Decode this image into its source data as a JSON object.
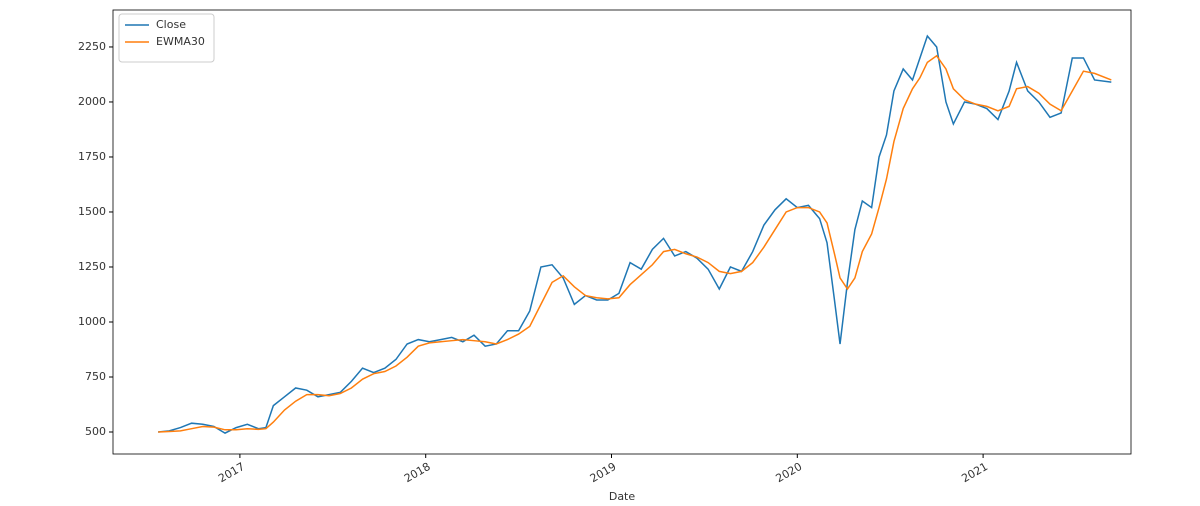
{
  "chart_data": {
    "type": "line",
    "xlabel": "Date",
    "x": [
      2016.56,
      2016.62,
      2016.68,
      2016.74,
      2016.8,
      2016.86,
      2016.92,
      2016.98,
      2017.04,
      2017.1,
      2017.14,
      2017.18,
      2017.24,
      2017.3,
      2017.36,
      2017.42,
      2017.48,
      2017.54,
      2017.6,
      2017.66,
      2017.72,
      2017.78,
      2017.84,
      2017.9,
      2017.96,
      2018.02,
      2018.08,
      2018.14,
      2018.2,
      2018.26,
      2018.32,
      2018.38,
      2018.44,
      2018.5,
      2018.56,
      2018.62,
      2018.68,
      2018.74,
      2018.8,
      2018.86,
      2018.92,
      2018.98,
      2019.04,
      2019.1,
      2019.16,
      2019.22,
      2019.28,
      2019.34,
      2019.4,
      2019.46,
      2019.52,
      2019.58,
      2019.64,
      2019.7,
      2019.76,
      2019.82,
      2019.88,
      2019.94,
      2020.0,
      2020.06,
      2020.12,
      2020.16,
      2020.2,
      2020.23,
      2020.27,
      2020.31,
      2020.35,
      2020.4,
      2020.44,
      2020.48,
      2020.52,
      2020.57,
      2020.62,
      2020.66,
      2020.7,
      2020.75,
      2020.8,
      2020.84,
      2020.9,
      2020.96,
      2021.02,
      2021.08,
      2021.14,
      2021.18,
      2021.24,
      2021.3,
      2021.36,
      2021.42,
      2021.48,
      2021.54,
      2021.6,
      2021.69
    ],
    "series": [
      {
        "name": "Close",
        "color": "#1f77b4",
        "values": [
          500,
          505,
          520,
          540,
          535,
          525,
          495,
          520,
          535,
          515,
          520,
          620,
          660,
          700,
          690,
          660,
          670,
          680,
          730,
          790,
          770,
          790,
          830,
          900,
          920,
          910,
          920,
          930,
          910,
          940,
          890,
          900,
          960,
          960,
          1050,
          1250,
          1260,
          1200,
          1080,
          1120,
          1100,
          1100,
          1130,
          1270,
          1240,
          1330,
          1380,
          1300,
          1320,
          1290,
          1240,
          1150,
          1250,
          1230,
          1320,
          1440,
          1510,
          1560,
          1520,
          1530,
          1470,
          1360,
          1100,
          900,
          1180,
          1420,
          1550,
          1520,
          1750,
          1850,
          2050,
          2150,
          2100,
          2200,
          2300,
          2250,
          2000,
          1900,
          2000,
          1990,
          1970,
          1920,
          2050,
          2180,
          2050,
          2000,
          1930,
          1950,
          2200,
          2200,
          2100,
          2090
        ]
      },
      {
        "name": "EWMA30",
        "color": "#ff7f0e",
        "values": [
          500,
          502,
          505,
          515,
          525,
          522,
          510,
          510,
          515,
          512,
          515,
          545,
          600,
          640,
          670,
          670,
          665,
          675,
          700,
          740,
          765,
          775,
          800,
          840,
          890,
          905,
          910,
          915,
          920,
          915,
          910,
          900,
          920,
          945,
          980,
          1080,
          1180,
          1210,
          1160,
          1120,
          1110,
          1105,
          1110,
          1170,
          1215,
          1260,
          1320,
          1330,
          1310,
          1295,
          1270,
          1230,
          1220,
          1230,
          1270,
          1340,
          1420,
          1500,
          1520,
          1520,
          1500,
          1450,
          1310,
          1200,
          1150,
          1200,
          1320,
          1400,
          1520,
          1650,
          1820,
          1970,
          2060,
          2110,
          2180,
          2210,
          2150,
          2060,
          2010,
          1990,
          1980,
          1960,
          1980,
          2060,
          2070,
          2040,
          1990,
          1960,
          2050,
          2140,
          2130,
          2100
        ]
      }
    ],
    "xlim": [
      2016.317,
      2021.796
    ],
    "xticks": [
      2017,
      2018,
      2019,
      2020,
      2021
    ],
    "ylim": [
      400,
      2418
    ],
    "yticks": [
      500,
      750,
      1000,
      1250,
      1500,
      1750,
      2000,
      2250
    ],
    "legend": "upper left",
    "grid": false
  }
}
